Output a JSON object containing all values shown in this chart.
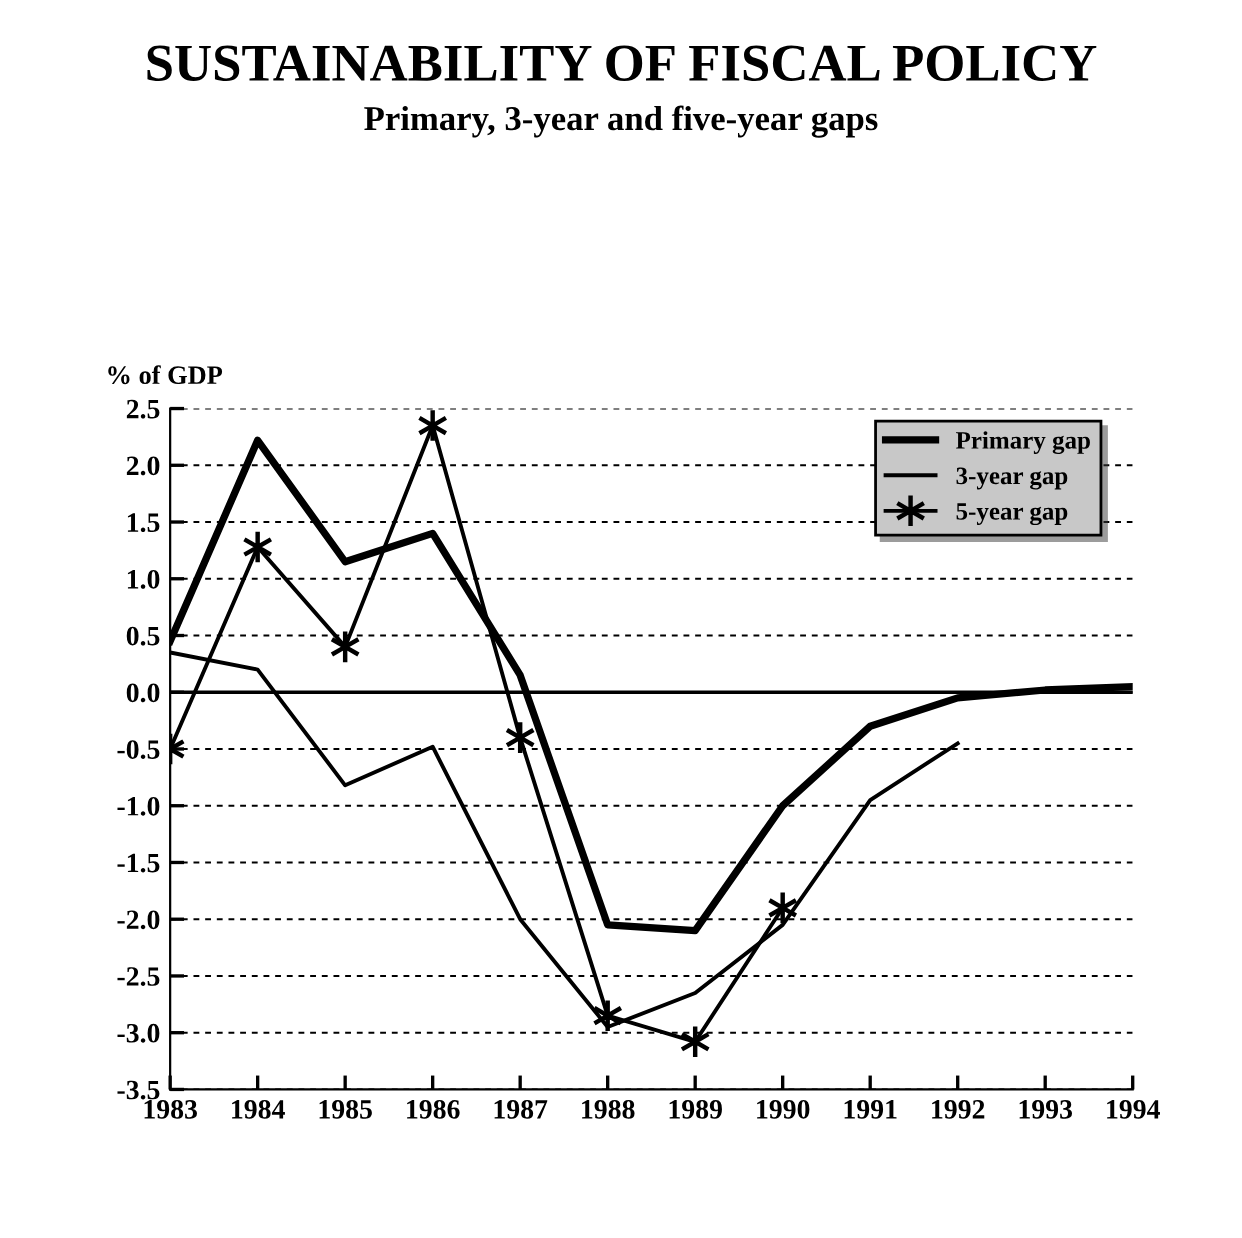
{
  "chart_data": {
    "type": "line",
    "title": "SUSTAINABILITY OF FISCAL POLICY",
    "subtitle": "Primary, 3-year and five-year gaps",
    "ylabel": "% of GDP",
    "x": [
      1983,
      1984,
      1985,
      1986,
      1987,
      1988,
      1989,
      1990,
      1991,
      1992,
      1993,
      1994
    ],
    "series": [
      {
        "name": "Primary gap",
        "color": "#000000",
        "marker": "none",
        "values": [
          0.45,
          2.22,
          1.15,
          1.4,
          0.15,
          -2.05,
          -2.1,
          -1.0,
          -0.3,
          -0.05,
          0.02,
          0.05
        ]
      },
      {
        "name": "3-year gap",
        "color": "#000000",
        "marker": "none",
        "values": [
          0.35,
          0.2,
          -0.82,
          -0.48,
          -2.0,
          -2.95,
          -2.65,
          -2.05,
          -0.95,
          -0.45,
          null,
          null
        ]
      },
      {
        "name": "5-year gap",
        "color": "#000000",
        "marker": "cross",
        "values": [
          -0.5,
          1.28,
          0.4,
          2.35,
          -0.4,
          -2.85,
          -3.08,
          -1.9,
          null,
          null,
          null,
          null
        ]
      }
    ],
    "xlim": [
      1983,
      1994
    ],
    "xticks": [
      1983,
      1984,
      1985,
      1986,
      1987,
      1988,
      1989,
      1990,
      1991,
      1992,
      1993,
      1994
    ],
    "ylim": [
      -3.5,
      2.5
    ],
    "yticks": [
      {
        "value": -3.5,
        "label": "-3.5"
      },
      {
        "value": -3.0,
        "label": "-3.0"
      },
      {
        "value": -2.5,
        "label": "-2.5"
      },
      {
        "value": -2.0,
        "label": "-2.0"
      },
      {
        "value": -1.5,
        "label": "-1.5"
      },
      {
        "value": -1.0,
        "label": "-1.0"
      },
      {
        "value": -0.5,
        "label": "-0.5"
      },
      {
        "value": 0.0,
        "label": "0.0"
      },
      {
        "value": 0.5,
        "label": "0.5"
      },
      {
        "value": 1.0,
        "label": "1.0"
      },
      {
        "value": 1.5,
        "label": "1.5"
      },
      {
        "value": 2.0,
        "label": "2.0"
      },
      {
        "value": 2.5,
        "label": "2.5"
      }
    ],
    "ref_lines": [
      {
        "axis": "y",
        "value": 0,
        "color": "#000000",
        "line_style": "solid"
      }
    ],
    "grid": "y",
    "legend": "top right",
    "line_style": "solid"
  }
}
